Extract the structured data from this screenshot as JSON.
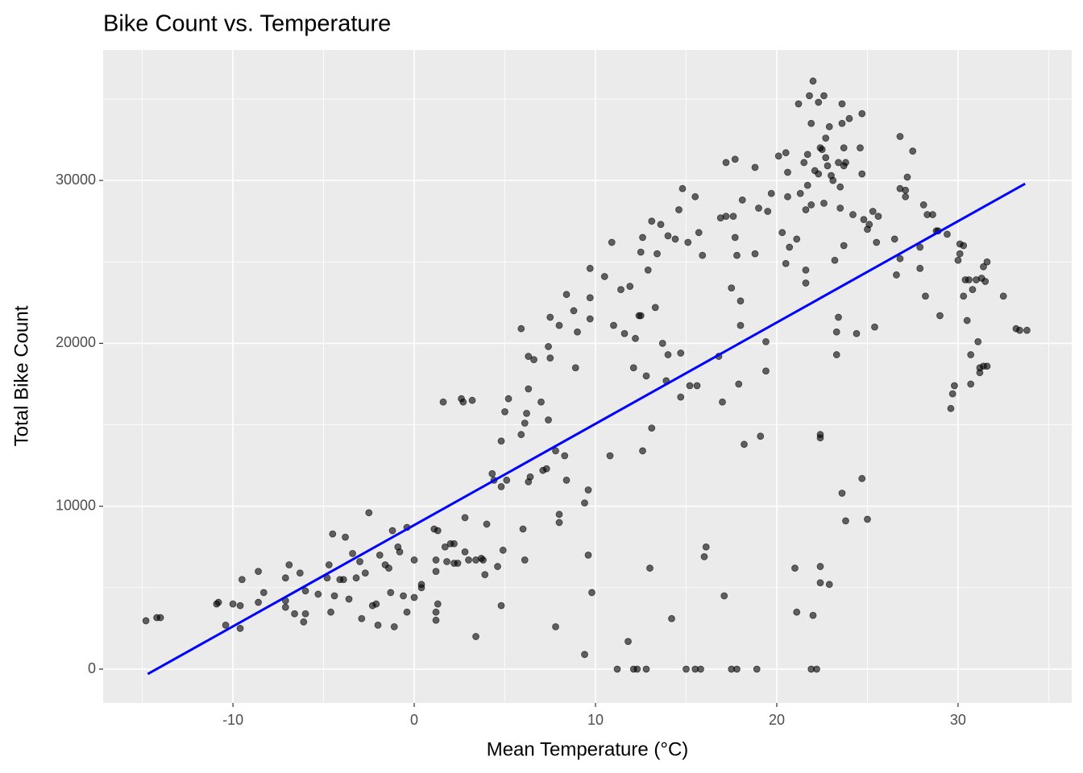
{
  "chart_data": {
    "type": "scatter",
    "title": "Bike Count vs. Temperature",
    "xlabel": "Mean Temperature (°C)",
    "ylabel": "Total Bike Count",
    "xlim": [
      -17.16,
      36.27
    ],
    "ylim": [
      -2076,
      38012
    ],
    "xticks": [
      -10,
      0,
      10,
      20,
      30
    ],
    "yticks": [
      0,
      10000,
      20000,
      30000
    ],
    "xminor": [
      -15,
      -5,
      5,
      15,
      25,
      35
    ],
    "yminor": [
      5000,
      15000,
      25000,
      35000
    ],
    "grid": true,
    "points": {
      "color": "#000000",
      "opacity": 0.6,
      "x": [
        -14.8,
        -14.2,
        -14.0,
        -10.9,
        -10.8,
        -10.4,
        -10.0,
        -9.6,
        -9.6,
        -9.5,
        -8.6,
        -8.6,
        -8.3,
        -7.1,
        -6.9,
        -7.1,
        -7.1,
        -6.6,
        -6.3,
        -6.1,
        -6.0,
        -6.0,
        -5.3,
        -4.8,
        -4.7,
        -4.6,
        -4.5,
        -4.4,
        -4.1,
        -3.9,
        -3.8,
        -3.6,
        -3.4,
        -3.2,
        -3.0,
        -2.9,
        -2.7,
        -2.5,
        -2.3,
        -2.1,
        -2.0,
        -1.9,
        -1.6,
        -1.4,
        -1.3,
        -1.2,
        -1.1,
        -0.9,
        -0.8,
        -0.6,
        -0.4,
        -0.4,
        0,
        0,
        0.4,
        0.4,
        1.2,
        1.2,
        1.2,
        1.1,
        1.3,
        1.2,
        1.3,
        1.6,
        1.7,
        1.8,
        2.0,
        2.2,
        2.2,
        2.4,
        2.6,
        2.7,
        2.8,
        2.8,
        3.0,
        3.2,
        3.4,
        3.4,
        3.7,
        3.8,
        4.0,
        3.9,
        4.3,
        4.4,
        4.6,
        4.8,
        4.8,
        4.9,
        4.8,
        5.0,
        5.1,
        5.2,
        5.9,
        5.9,
        6.0,
        6.1,
        6.1,
        6.2,
        6.3,
        6.3,
        6.3,
        6.4,
        6.6,
        7.0,
        7.1,
        7.3,
        7.4,
        7.4,
        7.5,
        7.5,
        7.8,
        7.8,
        8.0,
        8.0,
        8.0,
        8.3,
        8.4,
        8.4,
        8.8,
        8.9,
        9.0,
        9.4,
        9.4,
        9.6,
        9.6,
        9.7,
        9.7,
        9.7,
        9.8,
        10.5,
        10.8,
        10.9,
        11.0,
        11.2,
        11.4,
        11.6,
        11.8,
        11.9,
        12.1,
        12.2,
        12.1,
        12.3,
        12.4,
        12.5,
        12.5,
        12.6,
        12.6,
        12.8,
        12.9,
        12.8,
        13.0,
        13.1,
        13.1,
        13.3,
        13.4,
        13.6,
        13.7,
        13.9,
        14.0,
        14.0,
        14.2,
        14.4,
        14.6,
        14.7,
        14.7,
        14.8,
        15.0,
        15.1,
        15.2,
        15.5,
        15.5,
        15.6,
        15.7,
        15.8,
        15.9,
        16.0,
        16.1,
        16.8,
        16.9,
        17.0,
        17.1,
        17.2,
        17.2,
        17.5,
        17.5,
        17.6,
        17.7,
        17.8,
        17.7,
        17.8,
        17.9,
        18.0,
        18.0,
        18.1,
        18.2,
        18.8,
        18.8,
        18.9,
        19.0,
        19.1,
        19.4,
        19.4,
        19.5,
        19.7,
        20.1,
        20.3,
        20.5,
        20.6,
        20.6,
        20.5,
        20.7,
        21.0,
        21.1,
        21.1,
        21.2,
        21.3,
        21.5,
        21.6,
        21.6,
        21.6,
        21.7,
        21.7,
        21.8,
        21.9,
        21.9,
        22.0,
        22.0,
        21.9,
        22.1,
        22.2,
        22.3,
        22.4,
        22.3,
        22.4,
        22.4,
        22.4,
        22.4,
        22.5,
        22.6,
        22.6,
        22.7,
        22.7,
        22.8,
        22.9,
        22.9,
        23.0,
        23.1,
        23.2,
        23.3,
        23.3,
        23.4,
        23.4,
        23.5,
        23.5,
        23.6,
        23.6,
        23.6,
        23.7,
        23.7,
        23.8,
        23.8,
        23.7,
        24.0,
        24.2,
        24.4,
        24.6,
        24.7,
        24.7,
        24.7,
        24.8,
        25.0,
        25.0,
        25.1,
        25.3,
        25.4,
        25.5,
        25.6,
        26.5,
        26.6,
        26.8,
        26.8,
        26.8,
        27.1,
        27.1,
        27.2,
        27.5,
        27.9,
        27.9,
        28.1,
        28.2,
        28.3,
        28.6,
        28.8,
        28.9,
        29.0,
        29.4,
        29.6,
        29.7,
        29.8,
        30.0,
        30.1,
        30.1,
        30.3,
        30.3,
        30.4,
        30.5,
        30.6,
        30.7,
        30.7,
        30.8,
        31.0,
        31.1,
        31.2,
        31.2,
        31.3,
        31.4,
        31.4,
        31.5,
        31.6,
        31.6,
        32.5,
        33.2,
        33.4,
        33.8
      ],
      "y": [
        2970,
        3160,
        3160,
        4000,
        4100,
        2700,
        4000,
        3900,
        2500,
        5500,
        6000,
        4100,
        4700,
        5600,
        6400,
        4200,
        3800,
        3400,
        5900,
        2900,
        4800,
        3400,
        4600,
        5600,
        6400,
        3500,
        8300,
        4500,
        5500,
        5500,
        8100,
        4300,
        7100,
        5600,
        6600,
        3100,
        5900,
        9600,
        3900,
        4000,
        2700,
        7000,
        6400,
        6200,
        4700,
        8500,
        2600,
        7500,
        7200,
        4500,
        8700,
        3500,
        4400,
        6700,
        5000,
        5200,
        6000,
        3000,
        6700,
        8600,
        8500,
        3500,
        4000,
        16400,
        7500,
        6600,
        7700,
        7700,
        6500,
        6500,
        16600,
        16400,
        9300,
        7200,
        6700,
        16500,
        6700,
        2000,
        6800,
        6700,
        8900,
        5800,
        12000,
        11600,
        6300,
        14000,
        11200,
        7300,
        3900,
        15800,
        11600,
        16600,
        14400,
        20900,
        8600,
        6700,
        15100,
        15700,
        19200,
        17200,
        11500,
        11800,
        19000,
        16400,
        12200,
        12300,
        15300,
        19800,
        19100,
        21600,
        13400,
        2600,
        9500,
        9000,
        21100,
        13100,
        23000,
        11600,
        22000,
        18500,
        20700,
        900,
        10200,
        11000,
        7000,
        24600,
        21500,
        22800,
        4700,
        24100,
        13100,
        26200,
        21100,
        0,
        23300,
        20600,
        1700,
        23500,
        0,
        20300,
        18500,
        0,
        21700,
        25600,
        21700,
        13400,
        26500,
        18000,
        24500,
        0,
        6200,
        14800,
        27500,
        22200,
        25500,
        27300,
        20000,
        17700,
        19300,
        26600,
        3100,
        26400,
        28200,
        16700,
        19400,
        29500,
        0,
        26200,
        17400,
        29000,
        0,
        17400,
        26800,
        0,
        25400,
        6900,
        7500,
        19200,
        27700,
        16400,
        4500,
        31100,
        27800,
        23400,
        0,
        27800,
        26500,
        25400,
        31300,
        0,
        17500,
        21100,
        22600,
        28800,
        13800,
        30800,
        25500,
        0,
        28300,
        14300,
        18300,
        20100,
        28100,
        29200,
        31500,
        26800,
        31700,
        30500,
        29000,
        24900,
        25900,
        6200,
        3500,
        26400,
        34700,
        29200,
        31100,
        24500,
        28200,
        23700,
        31600,
        29700,
        35200,
        33500,
        28500,
        36100,
        3300,
        0,
        30600,
        0,
        34800,
        32000,
        30400,
        14200,
        14400,
        6300,
        5300,
        31900,
        35200,
        28600,
        31400,
        32600,
        30900,
        5200,
        33300,
        30300,
        30000,
        25100,
        19300,
        20700,
        21600,
        31100,
        28300,
        29600,
        34700,
        10800,
        33500,
        30900,
        26000,
        9100,
        31100,
        32000,
        33800,
        27900,
        20600,
        32000,
        34100,
        11700,
        30400,
        27600,
        27000,
        9200,
        27300,
        28100,
        21000,
        26200,
        27800,
        26400,
        24200,
        32700,
        29500,
        25200,
        29400,
        29000,
        30200,
        31800,
        25900,
        24600,
        28500,
        22900,
        27900,
        27900,
        26900,
        26900,
        21700,
        26700,
        16000,
        16900,
        17400,
        25100,
        25500,
        26100,
        26000,
        22900,
        23900,
        21400,
        23900,
        19300,
        17500,
        23300,
        23900,
        20100,
        18200,
        18500,
        24000,
        24700,
        18600,
        23800,
        25000,
        18600,
        22900,
        20900,
        20800,
        20800
      ]
    },
    "trend": {
      "color": "#0000ff",
      "x": [
        -14.7,
        33.7
      ],
      "y": [
        -300,
        29800
      ]
    }
  }
}
